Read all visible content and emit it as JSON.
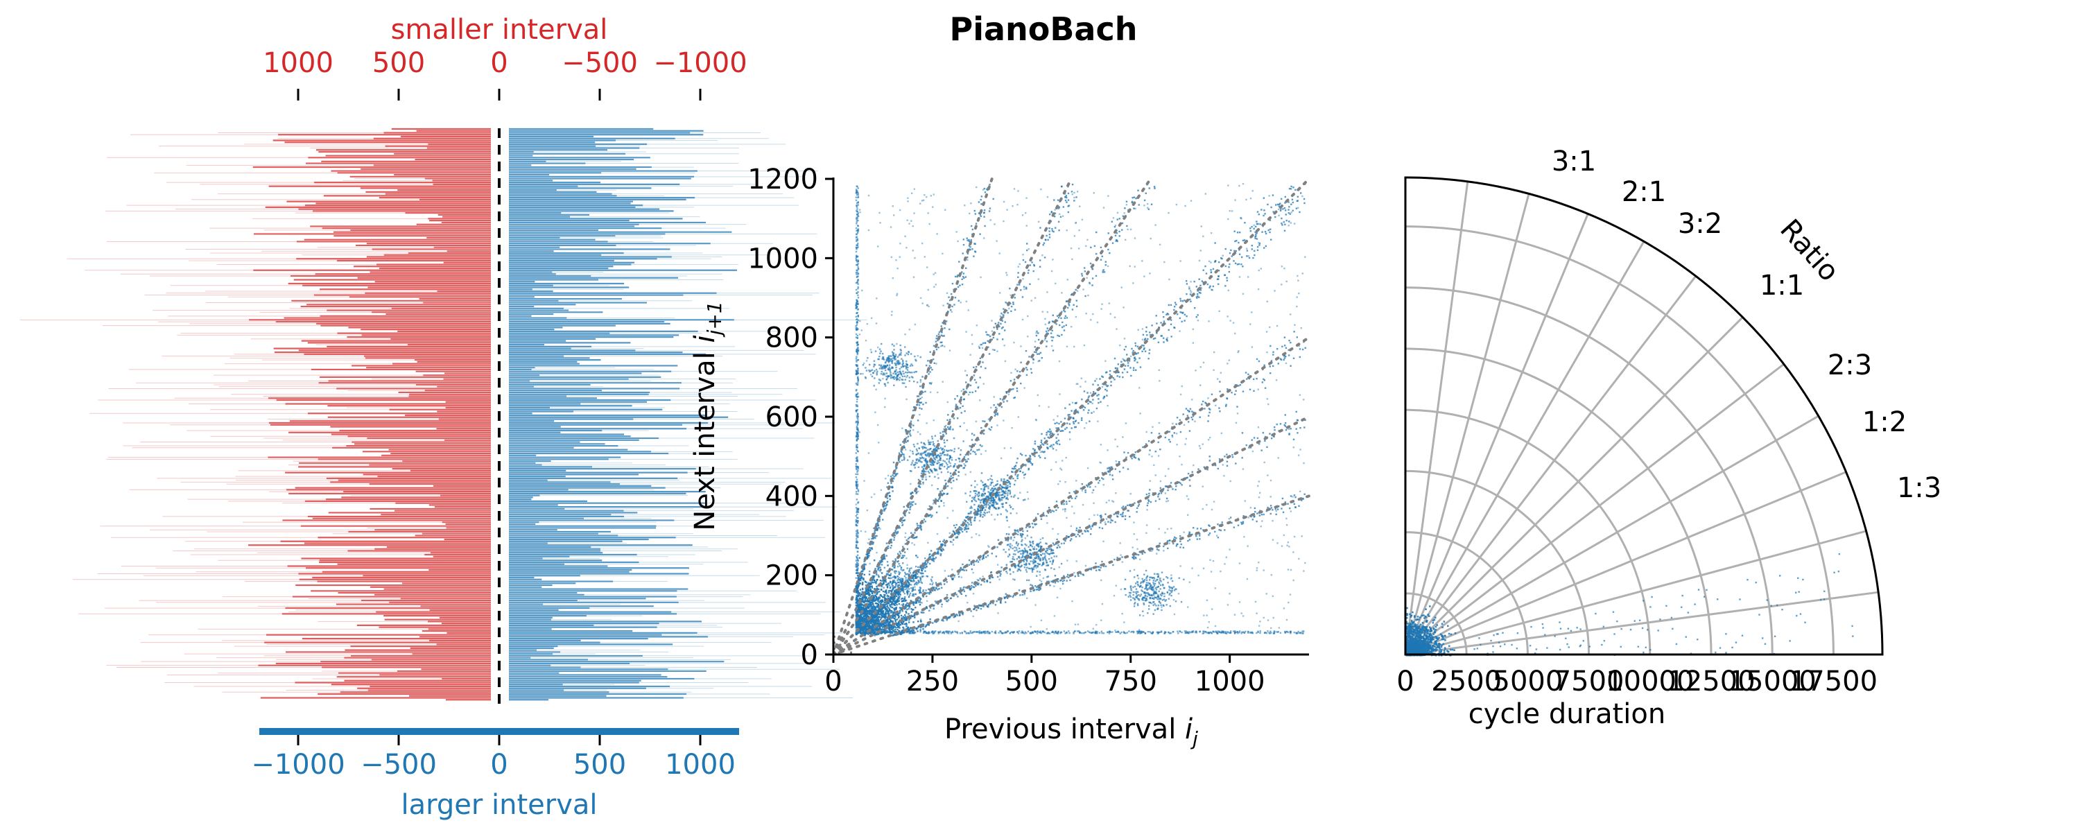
{
  "figure": {
    "title": "PianoBach"
  },
  "colors": {
    "red": "#d62728",
    "blue": "#1f77b4",
    "grid": "#b0b0b0",
    "guide": "#808080",
    "axis": "#000000"
  },
  "chart_data": [
    {
      "type": "scatter",
      "panel": "interval-raster",
      "top_axis_label": "smaller interval",
      "bottom_axis_label": "larger interval",
      "top_ticks": [
        "1000",
        "500",
        "0",
        "−500",
        "−1000"
      ],
      "bottom_ticks": [
        "−1000",
        "−500",
        "0",
        "500",
        "1000"
      ],
      "xlim": [
        -1200,
        1200
      ],
      "center_line": "dashed at 0",
      "series": [
        {
          "side": "left",
          "color": "red"
        },
        {
          "side": "right",
          "color": "blue"
        }
      ]
    },
    {
      "type": "scatter",
      "panel": "return-map",
      "xlabel": "Previous interval i_j",
      "ylabel": "Next interval i_{j+1}",
      "xlim": [
        0,
        1200
      ],
      "ylim": [
        0,
        1200
      ],
      "x_ticks": [
        "0",
        "250",
        "500",
        "750",
        "1000"
      ],
      "y_ticks": [
        "0",
        "200",
        "400",
        "600",
        "800",
        "1000",
        "1200"
      ],
      "guide_ratios": [
        3,
        2,
        1.5,
        1,
        0.6667,
        0.5,
        0.3333
      ],
      "clusters": [
        {
          "x": 180,
          "y": 180,
          "note": "dense core"
        },
        {
          "x": 400,
          "y": 400,
          "note": "1:1 diagonal"
        },
        {
          "x": 150,
          "y": 730
        },
        {
          "x": 800,
          "y": 160
        },
        {
          "x": 500,
          "y": 250
        },
        {
          "x": 250,
          "y": 500
        }
      ]
    },
    {
      "type": "scatter",
      "panel": "polar-ratio",
      "xlabel": "cycle duration",
      "angular_label": "Ratio",
      "ratio_labels": [
        "3:1",
        "2:1",
        "3:2",
        "1:1",
        "2:3",
        "1:2",
        "1:3"
      ],
      "radial_ticks": [
        "0",
        "2500",
        "5000",
        "7500",
        "10000",
        "12500",
        "15000",
        "17500"
      ],
      "rmax": 19500,
      "theta_range_deg": [
        0,
        90
      ]
    }
  ]
}
